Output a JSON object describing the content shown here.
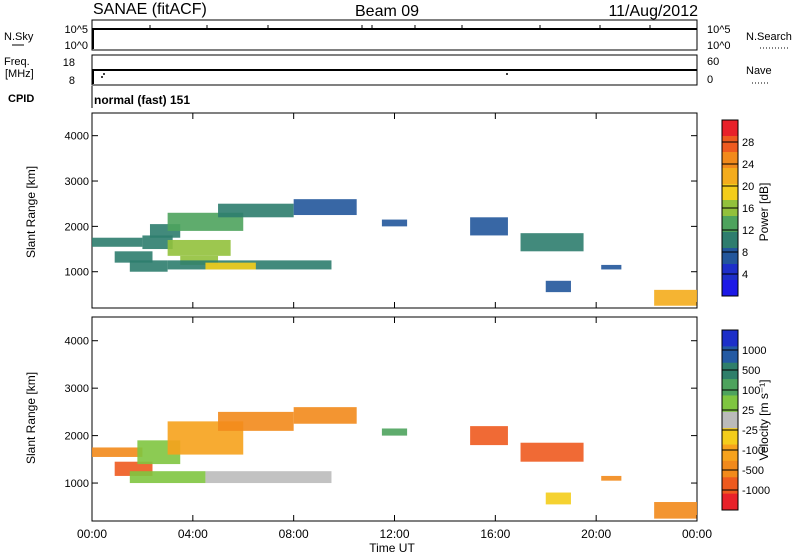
{
  "header": {
    "left_title": "SANAE (fitACF)",
    "center_title": "Beam 09",
    "right_title": "11/Aug/2012"
  },
  "nsky_panel": {
    "left_label": "N.Sky",
    "left_ticks": [
      "10^5",
      "10^0"
    ],
    "right_label": "N.Search",
    "right_ticks": [
      "10^5",
      "10^0"
    ]
  },
  "freq_panel": {
    "left_label_1": "Freq.",
    "left_label_2": "[MHz]",
    "left_ticks": [
      "18",
      "8"
    ],
    "right_label": "Nave",
    "right_ticks": [
      "60",
      "0"
    ]
  },
  "cpid": {
    "label": "CPID",
    "text": "normal (fast) 151"
  },
  "colorbars": {
    "power": {
      "label": "Power [dB]",
      "ticks": [
        "28",
        "24",
        "20",
        "16",
        "12",
        "8",
        "4"
      ],
      "colors": [
        "#e8212a",
        "#ee5a1f",
        "#f28a1b",
        "#f4ac1c",
        "#f4cd1b",
        "#92c13c",
        "#4ea35d",
        "#2e7d6e",
        "#22569b",
        "#1d2fc9",
        "#1c18e6"
      ]
    },
    "velocity": {
      "label": "Velocity [m s⁻¹]",
      "ticks": [
        "1000",
        "500",
        "100",
        "25",
        "-25",
        "-100",
        "-500",
        "-1000"
      ],
      "colors": [
        "#1d2fc9",
        "#245aa3",
        "#2f7f6a",
        "#4ea35d",
        "#7fc540",
        "#bbbbbb",
        "#f4cd1b",
        "#f6a21c",
        "#f28a1b",
        "#ee5a1f",
        "#e8212a"
      ]
    }
  },
  "chart_data": [
    {
      "type": "heatmap",
      "title": "Power",
      "ylabel": "Slant Range [km]",
      "xlabel": "",
      "ylim": [
        200,
        4500
      ],
      "y_ticks": [
        "1000",
        "2000",
        "3000",
        "4000"
      ],
      "x_ticks": [
        "00:00",
        "04:00",
        "08:00",
        "12:00",
        "16:00",
        "20:00",
        "00:00"
      ],
      "x_unit": "hours UT",
      "cells": [
        {
          "t0": 0.0,
          "t1": 2.0,
          "r0": 1550,
          "r1": 1750,
          "c": 8
        },
        {
          "t0": 0.9,
          "t1": 2.4,
          "r0": 1200,
          "r1": 1450,
          "c": 8
        },
        {
          "t0": 2.0,
          "t1": 3.2,
          "r0": 1500,
          "r1": 1800,
          "c": 10
        },
        {
          "t0": 2.3,
          "t1": 3.5,
          "r0": 1750,
          "r1": 2050,
          "c": 9
        },
        {
          "t0": 1.5,
          "t1": 3.0,
          "r0": 1000,
          "r1": 1250,
          "c": 9
        },
        {
          "t0": 3.0,
          "t1": 6.0,
          "r0": 1900,
          "r1": 2300,
          "c": 12
        },
        {
          "t0": 5.0,
          "t1": 8.0,
          "r0": 2200,
          "r1": 2500,
          "c": 10
        },
        {
          "t0": 3.0,
          "t1": 5.5,
          "r0": 1350,
          "r1": 1700,
          "c": 14
        },
        {
          "t0": 3.5,
          "t1": 5.0,
          "r0": 1150,
          "r1": 1350,
          "c": 16
        },
        {
          "t0": 3.0,
          "t1": 9.5,
          "r0": 1050,
          "r1": 1250,
          "c": 8
        },
        {
          "t0": 4.5,
          "t1": 6.5,
          "r0": 1050,
          "r1": 1200,
          "c": 18
        },
        {
          "t0": 8.0,
          "t1": 10.5,
          "r0": 2250,
          "r1": 2600,
          "c": 6
        },
        {
          "t0": 11.5,
          "t1": 12.5,
          "r0": 2000,
          "r1": 2150,
          "c": 6
        },
        {
          "t0": 15.0,
          "t1": 16.5,
          "r0": 1800,
          "r1": 2200,
          "c": 6
        },
        {
          "t0": 17.0,
          "t1": 19.5,
          "r0": 1450,
          "r1": 1850,
          "c": 10
        },
        {
          "t0": 18.0,
          "t1": 19.0,
          "r0": 550,
          "r1": 800,
          "c": 6
        },
        {
          "t0": 20.2,
          "t1": 21.0,
          "r0": 1050,
          "r1": 1150,
          "c": 6
        },
        {
          "t0": 22.3,
          "t1": 24.0,
          "r0": 250,
          "r1": 600,
          "c": 22
        }
      ]
    },
    {
      "type": "heatmap",
      "title": "Velocity",
      "ylabel": "Slant Range [km]",
      "xlabel": "Time UT",
      "ylim": [
        200,
        4500
      ],
      "y_ticks": [
        "1000",
        "2000",
        "3000",
        "4000"
      ],
      "x_ticks": [
        "00:00",
        "04:00",
        "08:00",
        "12:00",
        "16:00",
        "20:00",
        "00:00"
      ],
      "x_unit": "hours UT",
      "cells": [
        {
          "t0": 0.0,
          "t1": 2.0,
          "r0": 1550,
          "r1": 1750,
          "c": "#f28a1b"
        },
        {
          "t0": 0.9,
          "t1": 2.4,
          "r0": 1150,
          "r1": 1450,
          "c": "#ee5a1f"
        },
        {
          "t0": 1.8,
          "t1": 3.5,
          "r0": 1400,
          "r1": 1900,
          "c": "#7fc540"
        },
        {
          "t0": 1.5,
          "t1": 4.5,
          "r0": 1000,
          "r1": 1250,
          "c": "#7fc540"
        },
        {
          "t0": 4.5,
          "t1": 9.5,
          "r0": 1000,
          "r1": 1250,
          "c": "#bbbbbb"
        },
        {
          "t0": 3.0,
          "t1": 6.0,
          "r0": 1600,
          "r1": 2300,
          "c": "#f6a21c"
        },
        {
          "t0": 5.0,
          "t1": 8.0,
          "r0": 2100,
          "r1": 2500,
          "c": "#f28a1b"
        },
        {
          "t0": 8.0,
          "t1": 10.5,
          "r0": 2250,
          "r1": 2600,
          "c": "#f28a1b"
        },
        {
          "t0": 11.5,
          "t1": 12.5,
          "r0": 2000,
          "r1": 2150,
          "c": "#4ea35d"
        },
        {
          "t0": 15.0,
          "t1": 16.5,
          "r0": 1800,
          "r1": 2200,
          "c": "#ee5a1f"
        },
        {
          "t0": 17.0,
          "t1": 19.5,
          "r0": 1450,
          "r1": 1850,
          "c": "#ee5a1f"
        },
        {
          "t0": 18.0,
          "t1": 19.0,
          "r0": 550,
          "r1": 800,
          "c": "#f4cd1b"
        },
        {
          "t0": 20.2,
          "t1": 21.0,
          "r0": 1050,
          "r1": 1150,
          "c": "#f28a1b"
        },
        {
          "t0": 22.3,
          "t1": 24.0,
          "r0": 250,
          "r1": 600,
          "c": "#f28a1b"
        }
      ]
    }
  ]
}
